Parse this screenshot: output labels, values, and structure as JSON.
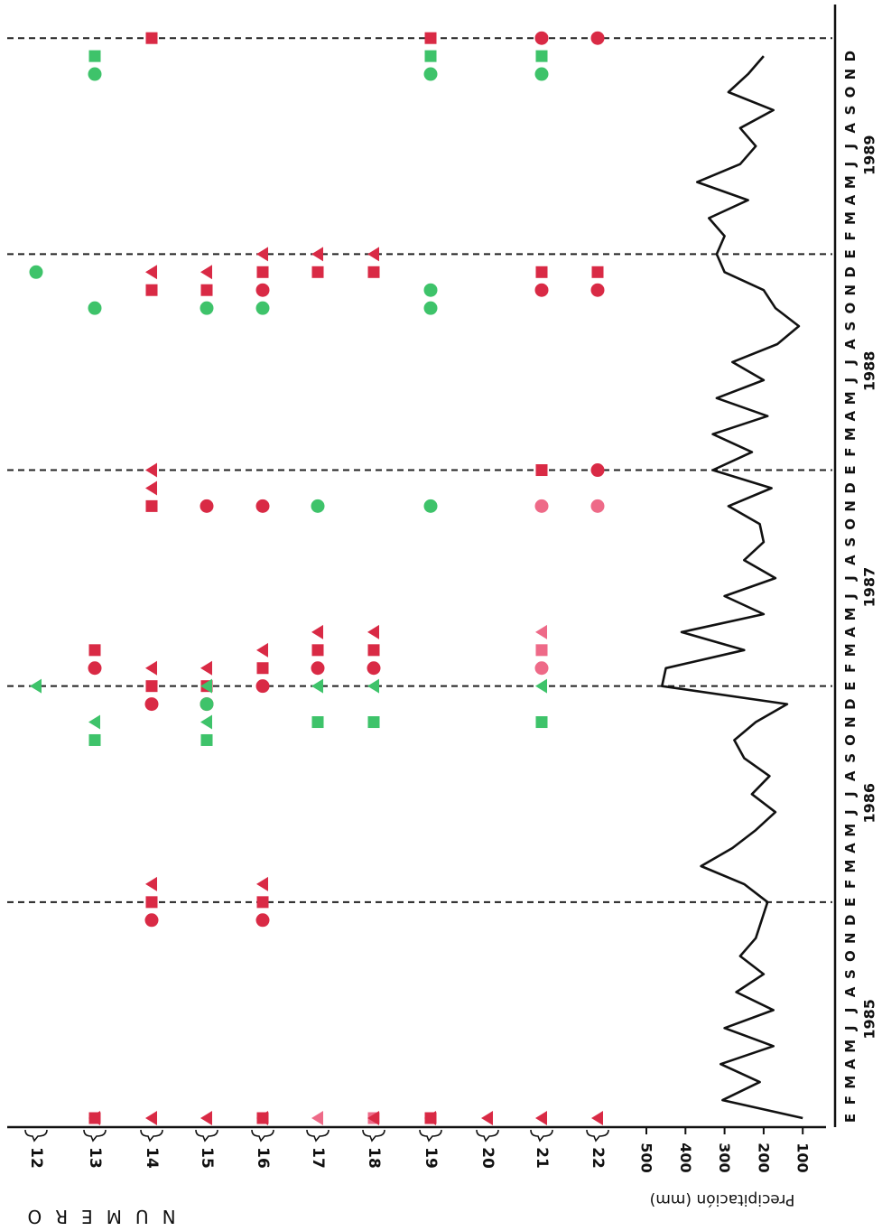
{
  "chart_data": {
    "type": "scatter",
    "orientation": "rotated-90",
    "y_axis_title": "NUMERO",
    "rows": [
      "12",
      "13",
      "14",
      "15",
      "16",
      "17",
      "18",
      "19",
      "20",
      "21",
      "22"
    ],
    "month_letters": [
      "E",
      "F",
      "M",
      "A",
      "M",
      "J",
      "J",
      "A",
      "S",
      "O",
      "N",
      "D"
    ],
    "years": [
      "1985",
      "1986",
      "1987",
      "1988",
      "1989"
    ],
    "dashed_year_boundaries": [
      "1986",
      "1987",
      "1988",
      "1989",
      "1990"
    ],
    "colors": {
      "red": "#d92a45",
      "pink": "#ee6a88",
      "green": "#3ec36a"
    },
    "legend": "none",
    "markers": [
      {
        "row": "13",
        "month": "1985-01",
        "shape": "square",
        "color": "red"
      },
      {
        "row": "13",
        "month": "1985-01",
        "shape": "triangle",
        "color": "red"
      },
      {
        "row": "14",
        "month": "1985-01",
        "shape": "triangle",
        "color": "red"
      },
      {
        "row": "15",
        "month": "1985-01",
        "shape": "triangle",
        "color": "red"
      },
      {
        "row": "16",
        "month": "1985-01",
        "shape": "square",
        "color": "red"
      },
      {
        "row": "16",
        "month": "1985-01",
        "shape": "triangle",
        "color": "red"
      },
      {
        "row": "17",
        "month": "1985-01",
        "shape": "triangle",
        "color": "pink"
      },
      {
        "row": "18",
        "month": "1985-01",
        "shape": "square",
        "color": "pink"
      },
      {
        "row": "18",
        "month": "1985-01",
        "shape": "triangle",
        "color": "red"
      },
      {
        "row": "19",
        "month": "1985-01",
        "shape": "square",
        "color": "red"
      },
      {
        "row": "19",
        "month": "1985-01",
        "shape": "triangle",
        "color": "red"
      },
      {
        "row": "20",
        "month": "1985-01",
        "shape": "triangle",
        "color": "red"
      },
      {
        "row": "21",
        "month": "1985-01",
        "shape": "triangle",
        "color": "red"
      },
      {
        "row": "22",
        "month": "1985-01",
        "shape": "triangle",
        "color": "red"
      },
      {
        "row": "14",
        "month": "1985-12",
        "shape": "circle",
        "color": "red"
      },
      {
        "row": "14",
        "month": "1986-01",
        "shape": "square",
        "color": "red"
      },
      {
        "row": "14",
        "month": "1986-02",
        "shape": "triangle",
        "color": "red"
      },
      {
        "row": "16",
        "month": "1985-12",
        "shape": "circle",
        "color": "red"
      },
      {
        "row": "16",
        "month": "1986-01",
        "shape": "square",
        "color": "red"
      },
      {
        "row": "16",
        "month": "1986-02",
        "shape": "triangle",
        "color": "red"
      },
      {
        "row": "12",
        "month": "1987-01",
        "shape": "triangle",
        "color": "green"
      },
      {
        "row": "13",
        "month": "1986-10",
        "shape": "square",
        "color": "green"
      },
      {
        "row": "13",
        "month": "1986-11",
        "shape": "triangle",
        "color": "green"
      },
      {
        "row": "13",
        "month": "1987-02",
        "shape": "circle",
        "color": "red"
      },
      {
        "row": "13",
        "month": "1987-03",
        "shape": "square",
        "color": "red"
      },
      {
        "row": "14",
        "month": "1986-12",
        "shape": "circle",
        "color": "red"
      },
      {
        "row": "14",
        "month": "1987-01",
        "shape": "square",
        "color": "red"
      },
      {
        "row": "14",
        "month": "1987-02",
        "shape": "triangle",
        "color": "red"
      },
      {
        "row": "15",
        "month": "1986-10",
        "shape": "square",
        "color": "green"
      },
      {
        "row": "15",
        "month": "1986-11",
        "shape": "triangle",
        "color": "green"
      },
      {
        "row": "15",
        "month": "1986-12",
        "shape": "circle",
        "color": "red"
      },
      {
        "row": "15",
        "month": "1987-01",
        "shape": "square",
        "color": "red"
      },
      {
        "row": "15",
        "month": "1987-02",
        "shape": "triangle",
        "color": "red"
      },
      {
        "row": "15",
        "month": "1986-12",
        "shape": "circle",
        "color": "green"
      },
      {
        "row": "15",
        "month": "1987-01",
        "shape": "triangle",
        "color": "green"
      },
      {
        "row": "16",
        "month": "1987-01",
        "shape": "circle",
        "color": "red"
      },
      {
        "row": "16",
        "month": "1987-02",
        "shape": "square",
        "color": "red"
      },
      {
        "row": "16",
        "month": "1987-03",
        "shape": "triangle",
        "color": "red"
      },
      {
        "row": "17",
        "month": "1986-11",
        "shape": "square",
        "color": "green"
      },
      {
        "row": "17",
        "month": "1987-01",
        "shape": "triangle",
        "color": "green"
      },
      {
        "row": "17",
        "month": "1987-02",
        "shape": "circle",
        "color": "red"
      },
      {
        "row": "17",
        "month": "1987-03",
        "shape": "square",
        "color": "red"
      },
      {
        "row": "17",
        "month": "1987-04",
        "shape": "triangle",
        "color": "red"
      },
      {
        "row": "18",
        "month": "1986-11",
        "shape": "square",
        "color": "green"
      },
      {
        "row": "18",
        "month": "1987-01",
        "shape": "triangle",
        "color": "green"
      },
      {
        "row": "18",
        "month": "1987-02",
        "shape": "circle",
        "color": "red"
      },
      {
        "row": "18",
        "month": "1987-03",
        "shape": "square",
        "color": "red"
      },
      {
        "row": "18",
        "month": "1987-04",
        "shape": "triangle",
        "color": "red"
      },
      {
        "row": "21",
        "month": "1986-11",
        "shape": "square",
        "color": "green"
      },
      {
        "row": "21",
        "month": "1987-01",
        "shape": "triangle",
        "color": "green"
      },
      {
        "row": "21",
        "month": "1987-02",
        "shape": "circle",
        "color": "pink"
      },
      {
        "row": "21",
        "month": "1987-03",
        "shape": "square",
        "color": "pink"
      },
      {
        "row": "21",
        "month": "1987-04",
        "shape": "triangle",
        "color": "pink"
      },
      {
        "row": "14",
        "month": "1987-11",
        "shape": "square",
        "color": "red"
      },
      {
        "row": "14",
        "month": "1987-12",
        "shape": "triangle",
        "color": "red"
      },
      {
        "row": "14",
        "month": "1988-01",
        "shape": "triangle",
        "color": "red"
      },
      {
        "row": "15",
        "month": "1987-11",
        "shape": "circle",
        "color": "red"
      },
      {
        "row": "16",
        "month": "1987-11",
        "shape": "circle",
        "color": "red"
      },
      {
        "row": "17",
        "month": "1987-11",
        "shape": "circle",
        "color": "green"
      },
      {
        "row": "19",
        "month": "1987-11",
        "shape": "circle",
        "color": "green"
      },
      {
        "row": "21",
        "month": "1987-11",
        "shape": "circle",
        "color": "pink"
      },
      {
        "row": "21",
        "month": "1988-01",
        "shape": "square",
        "color": "red"
      },
      {
        "row": "22",
        "month": "1987-11",
        "shape": "circle",
        "color": "pink"
      },
      {
        "row": "22",
        "month": "1988-01",
        "shape": "circle",
        "color": "red"
      },
      {
        "row": "12",
        "month": "1988-12",
        "shape": "circle",
        "color": "green"
      },
      {
        "row": "13",
        "month": "1988-10",
        "shape": "circle",
        "color": "green"
      },
      {
        "row": "14",
        "month": "1988-11",
        "shape": "square",
        "color": "red"
      },
      {
        "row": "14",
        "month": "1988-12",
        "shape": "triangle",
        "color": "red"
      },
      {
        "row": "15",
        "month": "1988-10",
        "shape": "circle",
        "color": "green"
      },
      {
        "row": "15",
        "month": "1988-11",
        "shape": "square",
        "color": "red"
      },
      {
        "row": "15",
        "month": "1988-12",
        "shape": "triangle",
        "color": "red"
      },
      {
        "row": "16",
        "month": "1988-10",
        "shape": "circle",
        "color": "green"
      },
      {
        "row": "16",
        "month": "1988-11",
        "shape": "circle",
        "color": "red"
      },
      {
        "row": "16",
        "month": "1988-12",
        "shape": "square",
        "color": "red"
      },
      {
        "row": "16",
        "month": "1989-01",
        "shape": "triangle",
        "color": "red"
      },
      {
        "row": "17",
        "month": "1988-12",
        "shape": "square",
        "color": "red"
      },
      {
        "row": "17",
        "month": "1989-01",
        "shape": "triangle",
        "color": "red"
      },
      {
        "row": "18",
        "month": "1988-12",
        "shape": "square",
        "color": "red"
      },
      {
        "row": "18",
        "month": "1989-01",
        "shape": "triangle",
        "color": "red"
      },
      {
        "row": "19",
        "month": "1988-10",
        "shape": "circle",
        "color": "green"
      },
      {
        "row": "19",
        "month": "1988-11",
        "shape": "circle",
        "color": "green"
      },
      {
        "row": "21",
        "month": "1988-11",
        "shape": "circle",
        "color": "red"
      },
      {
        "row": "21",
        "month": "1988-12",
        "shape": "square",
        "color": "red"
      },
      {
        "row": "22",
        "month": "1988-11",
        "shape": "circle",
        "color": "red"
      },
      {
        "row": "22",
        "month": "1988-12",
        "shape": "square",
        "color": "red"
      },
      {
        "row": "13",
        "month": "1989-11",
        "shape": "circle",
        "color": "green"
      },
      {
        "row": "13",
        "month": "1989-12",
        "shape": "square",
        "color": "green"
      },
      {
        "row": "14",
        "month": "1990-01",
        "shape": "square",
        "color": "red"
      },
      {
        "row": "19",
        "month": "1989-11",
        "shape": "circle",
        "color": "green"
      },
      {
        "row": "19",
        "month": "1989-12",
        "shape": "square",
        "color": "green"
      },
      {
        "row": "19",
        "month": "1990-01",
        "shape": "square",
        "color": "red"
      },
      {
        "row": "21",
        "month": "1989-11",
        "shape": "circle",
        "color": "green"
      },
      {
        "row": "21",
        "month": "1989-12",
        "shape": "square",
        "color": "green"
      },
      {
        "row": "21",
        "month": "1990-01",
        "shape": "circle",
        "color": "red"
      },
      {
        "row": "22",
        "month": "1990-01",
        "shape": "circle",
        "color": "red"
      }
    ],
    "precipitation": {
      "ylabel": "Precipitación (mm)",
      "ylim": [
        50,
        550
      ],
      "ticks": [
        100,
        200,
        300,
        400,
        500
      ],
      "values": [
        100,
        305,
        210,
        310,
        175,
        300,
        175,
        270,
        200,
        260,
        220,
        205,
        190,
        250,
        360,
        280,
        220,
        170,
        230,
        185,
        250,
        275,
        220,
        140,
        460,
        450,
        250,
        410,
        200,
        300,
        170,
        250,
        200,
        210,
        290,
        180,
        330,
        230,
        330,
        190,
        320,
        200,
        280,
        165,
        110,
        170,
        200,
        300,
        320,
        300,
        340,
        240,
        370,
        260,
        220,
        260,
        175,
        290,
        240,
        200
      ]
    }
  }
}
